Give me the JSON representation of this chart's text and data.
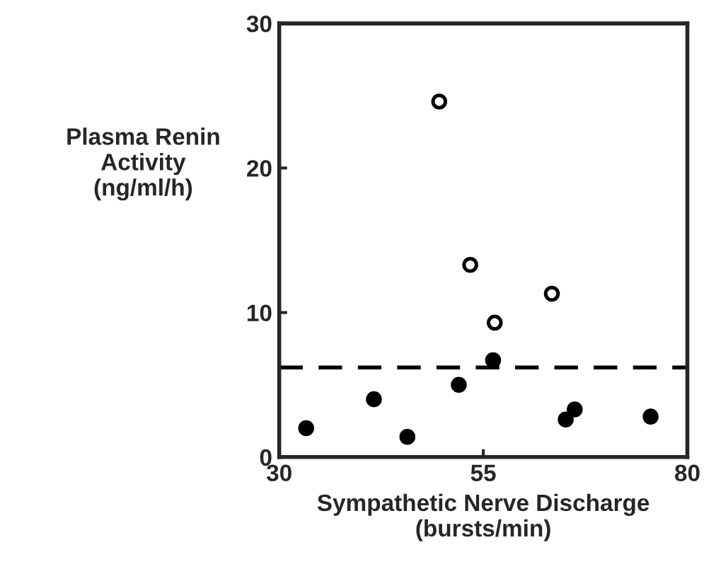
{
  "chart_data": {
    "type": "scatter",
    "xlabel": "Sympathetic Nerve Discharge\n(bursts/min)",
    "ylabel": "Plasma Renin\nActivity\n(ng/ml/h)",
    "series": [
      {
        "color": "#ffffff",
        "x": [
          49.6,
          53.4,
          56.4,
          63.4
        ],
        "values": [
          24.6,
          13.3,
          9.3,
          11.3
        ]
      },
      {
        "color": "#000000",
        "x": [
          33.3,
          41.6,
          45.7,
          52.0,
          56.2,
          65.1,
          66.2,
          75.5
        ],
        "values": [
          2.0,
          4.0,
          1.4,
          5.0,
          6.7,
          2.6,
          3.3,
          2.8
        ]
      }
    ],
    "xlim": [
      30,
      80
    ],
    "xticks": [
      30,
      55,
      80
    ],
    "ylim": [
      0,
      30
    ],
    "yticks": [
      0,
      10,
      20,
      30
    ],
    "ref_lines": [
      {
        "axis": "y",
        "value": 6.2,
        "line_style": "dashed",
        "color": "#000000"
      }
    ],
    "marker": "circle",
    "grid": false,
    "legend": false
  }
}
